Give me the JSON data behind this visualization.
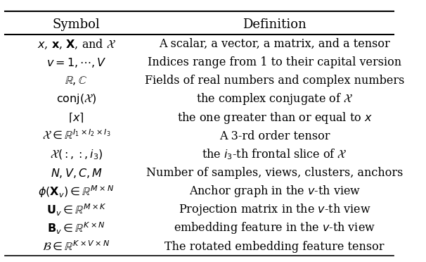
{
  "title_symbol": "Symbol",
  "title_definition": "Definition",
  "rows": [
    [
      "$x$, $\\mathbf{x}$, $\\mathbf{X}$, and $\\mathcal{X}$",
      "A scalar, a vector, a matrix, and a tensor"
    ],
    [
      "$v = 1, \\cdots, V$",
      "Indices range from 1 to their capital version"
    ],
    [
      "$\\mathbb{R}, \\mathbb{C}$",
      "Fields of real numbers and complex numbers"
    ],
    [
      "$\\mathrm{conj}(\\mathcal{X})$",
      "the complex conjugate of $\\mathcal{X}$"
    ],
    [
      "$\\lceil x \\rceil$",
      "the one greater than or equal to $x$"
    ],
    [
      "$\\mathcal{X} \\in \\mathbb{R}^{I_1 \\times I_2 \\times I_3}$",
      "A 3-rd order tensor"
    ],
    [
      "$\\mathcal{X}(:,:,i_3)$",
      "the $i_3$-th frontal slice of $\\mathcal{X}$"
    ],
    [
      "$N, V, C, M$",
      "Number of samples, views, clusters, anchors"
    ],
    [
      "$\\phi(\\mathbf{X}_v) \\in \\mathbb{R}^{M \\times N}$",
      "Anchor graph in the $v$-th view"
    ],
    [
      "$\\mathbf{U}_v \\in \\mathbb{R}^{M \\times K}$",
      "Projection matrix in the $v$-th view"
    ],
    [
      "$\\mathbf{B}_v \\in \\mathbb{R}^{K \\times N}$",
      "embedding feature in the $v$-th view"
    ],
    [
      "$\\mathcal{B} \\in \\mathbb{R}^{K \\times V \\times N}$",
      "The rotated embedding feature tensor"
    ]
  ],
  "col_split": 0.38,
  "bg_color": "#ffffff",
  "text_color": "#000000",
  "header_fontsize": 13,
  "body_fontsize": 11.5,
  "fig_width": 6.06,
  "fig_height": 3.72
}
